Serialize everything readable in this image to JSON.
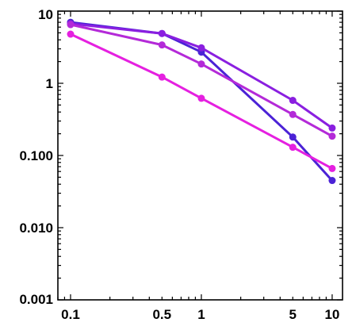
{
  "chart_data": {
    "type": "line",
    "x_scale": "log",
    "y_scale": "log",
    "xlim": [
      0.08,
      12
    ],
    "ylim": [
      0.001,
      10
    ],
    "grid": false,
    "legend": "none",
    "title": "",
    "xlabel": "",
    "ylabel": "",
    "x_ticks": [
      {
        "value": 0.1,
        "label": "0.1"
      },
      {
        "value": 0.5,
        "label": "0.5"
      },
      {
        "value": 1,
        "label": "1"
      },
      {
        "value": 5,
        "label": "5"
      },
      {
        "value": 10,
        "label": "10"
      }
    ],
    "y_ticks": [
      {
        "value": 0.001,
        "label": "0.001"
      },
      {
        "value": 0.01,
        "label": "0.010"
      },
      {
        "value": 0.1,
        "label": "0.100"
      },
      {
        "value": 1,
        "label": "1"
      },
      {
        "value": 10,
        "label": "10"
      }
    ],
    "x": [
      0.1,
      0.5,
      1,
      5,
      10
    ],
    "series": [
      {
        "color": "#4b22d6",
        "values": [
          7.0,
          4.9,
          2.7,
          0.18,
          0.045
        ]
      },
      {
        "color": "#8a1fe0",
        "values": [
          6.7,
          4.9,
          3.1,
          0.58,
          0.24
        ]
      },
      {
        "color": "#b42ad8",
        "values": [
          6.5,
          3.4,
          1.85,
          0.37,
          0.185
        ]
      },
      {
        "color": "#e520e0",
        "values": [
          4.8,
          1.22,
          0.62,
          0.13,
          0.066
        ]
      }
    ]
  }
}
